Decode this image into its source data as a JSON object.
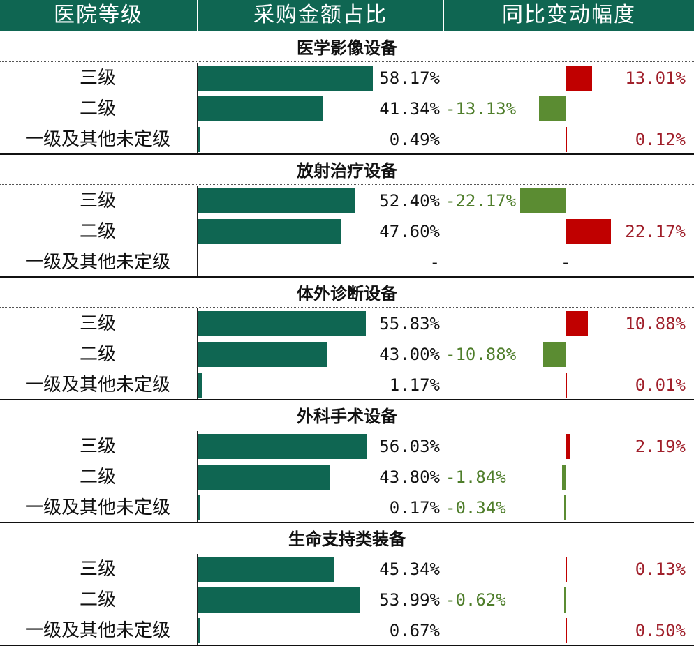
{
  "headers": [
    "医院等级",
    "采购金额占比",
    "同比变动幅度"
  ],
  "colors": {
    "header_bg": "#0f6652",
    "share_bar": "#0f6652",
    "positive": "#c00000",
    "negative": "#5b8c32",
    "positive_text": "#a0202b",
    "negative_text": "#4e7d2a"
  },
  "chart_data": {
    "type": "table",
    "columns": [
      "医院等级",
      "采购金额占比",
      "同比变动幅度"
    ],
    "share_range": [
      0,
      100
    ],
    "change_range": [
      -30,
      30
    ],
    "categories": [
      {
        "name": "医学影像设备",
        "rows": [
          {
            "level": "三级",
            "share": 58.17,
            "share_label": "58.17%",
            "change": 13.01,
            "change_label": "13.01%"
          },
          {
            "level": "二级",
            "share": 41.34,
            "share_label": "41.34%",
            "change": -13.13,
            "change_label": "-13.13%"
          },
          {
            "level": "一级及其他未定级",
            "share": 0.49,
            "share_label": "0.49%",
            "change": 0.12,
            "change_label": "0.12%"
          }
        ]
      },
      {
        "name": "放射治疗设备",
        "rows": [
          {
            "level": "三级",
            "share": 52.4,
            "share_label": "52.40%",
            "change": -22.17,
            "change_label": "-22.17%"
          },
          {
            "level": "二级",
            "share": 47.6,
            "share_label": "47.60%",
            "change": 22.17,
            "change_label": "22.17%"
          },
          {
            "level": "一级及其他未定级",
            "share": null,
            "share_label": "-",
            "change": null,
            "change_label": "-"
          }
        ]
      },
      {
        "name": "体外诊断设备",
        "rows": [
          {
            "level": "三级",
            "share": 55.83,
            "share_label": "55.83%",
            "change": 10.88,
            "change_label": "10.88%"
          },
          {
            "level": "二级",
            "share": 43.0,
            "share_label": "43.00%",
            "change": -10.88,
            "change_label": "-10.88%"
          },
          {
            "level": "一级及其他未定级",
            "share": 1.17,
            "share_label": "1.17%",
            "change": 0.01,
            "change_label": "0.01%"
          }
        ]
      },
      {
        "name": "外科手术设备",
        "rows": [
          {
            "level": "三级",
            "share": 56.03,
            "share_label": "56.03%",
            "change": 2.19,
            "change_label": "2.19%"
          },
          {
            "level": "二级",
            "share": 43.8,
            "share_label": "43.80%",
            "change": -1.84,
            "change_label": "-1.84%"
          },
          {
            "level": "一级及其他未定级",
            "share": 0.17,
            "share_label": "0.17%",
            "change": -0.34,
            "change_label": "-0.34%"
          }
        ]
      },
      {
        "name": "生命支持类装备",
        "rows": [
          {
            "level": "三级",
            "share": 45.34,
            "share_label": "45.34%",
            "change": 0.13,
            "change_label": "0.13%"
          },
          {
            "level": "二级",
            "share": 53.99,
            "share_label": "53.99%",
            "change": -0.62,
            "change_label": "-0.62%"
          },
          {
            "level": "一级及其他未定级",
            "share": 0.67,
            "share_label": "0.67%",
            "change": 0.5,
            "change_label": "0.50%"
          }
        ]
      }
    ]
  }
}
